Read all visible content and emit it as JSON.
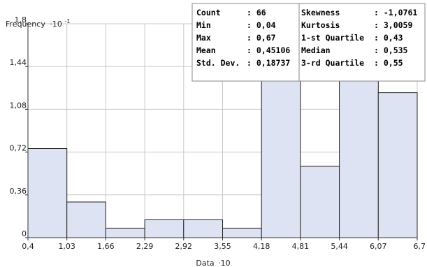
{
  "chart_data": {
    "type": "bar",
    "ylabel": "Frequency",
    "ylabel_exp": "-1",
    "ylabel_mult": "·10",
    "xlabel": "Data",
    "xlabel_mult": "·10",
    "ylim": [
      0,
      1.8
    ],
    "xlim": [
      0.4,
      6.7
    ],
    "y_ticks": [
      "0",
      "0,36",
      "0,72",
      "1,08",
      "1,44",
      "1,8"
    ],
    "x_ticks": [
      "0,4",
      "1,03",
      "1,66",
      "2,29",
      "2,92",
      "3,55",
      "4,18",
      "4,81",
      "5,44",
      "6,07",
      "6,7"
    ],
    "bins": [
      {
        "start": 0.4,
        "end": 1.03,
        "value": 0.75
      },
      {
        "start": 1.03,
        "end": 1.66,
        "value": 0.3
      },
      {
        "start": 1.66,
        "end": 2.29,
        "value": 0.08
      },
      {
        "start": 2.29,
        "end": 2.92,
        "value": 0.15
      },
      {
        "start": 2.92,
        "end": 3.55,
        "value": 0.15
      },
      {
        "start": 3.55,
        "end": 4.18,
        "value": 0.08
      },
      {
        "start": 4.18,
        "end": 4.81,
        "value": 1.65
      },
      {
        "start": 4.81,
        "end": 5.44,
        "value": 0.6
      },
      {
        "start": 5.44,
        "end": 6.07,
        "value": 1.65
      },
      {
        "start": 6.07,
        "end": 6.7,
        "value": 1.22
      }
    ],
    "grid": true,
    "colors": {
      "bar_fill": "#dde3f2",
      "bar_stroke": "#222222",
      "grid": "#c8c8c8"
    }
  },
  "stats": {
    "left": [
      {
        "label": "Count",
        "value": ": 66"
      },
      {
        "label": "Min",
        "value": ": 0,04"
      },
      {
        "label": "Max",
        "value": ": 0,67"
      },
      {
        "label": "Mean",
        "value": ": 0,45106"
      },
      {
        "label": "Std. Dev.",
        "value": ": 0,18737"
      }
    ],
    "right": [
      {
        "label": "Skewness",
        "value": ": -1,0761"
      },
      {
        "label": "Kurtosis",
        "value": ": 3,0059"
      },
      {
        "label": "1-st Quartile",
        "value": ": 0,43"
      },
      {
        "label": "Median",
        "value": ": 0,535"
      },
      {
        "label": "3-rd Quartile",
        "value": ": 0,55"
      }
    ]
  }
}
